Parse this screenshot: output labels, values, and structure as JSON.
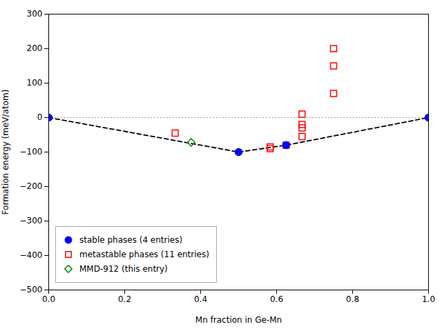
{
  "chart_data": {
    "type": "scatter",
    "xlabel": "Mn fraction in Ge-Mn",
    "ylabel": "Formation energy (meV/atom)",
    "xlim": [
      0.0,
      1.0
    ],
    "ylim": [
      -500,
      300
    ],
    "xticks": [
      {
        "value": 0.0,
        "label": "0.0"
      },
      0.2,
      0.4,
      0.6,
      0.8,
      {
        "value": 1.0,
        "label": "1.0"
      }
    ],
    "yticks": [
      -500,
      -400,
      -300,
      -200,
      -100,
      0,
      100,
      200,
      300
    ],
    "grid": false,
    "legend": "lower left",
    "series": [
      {
        "name": "stable phases (4 entries)",
        "color": "blue",
        "marker": "circle",
        "x": [
          0.0,
          0.5,
          0.625,
          1.0
        ],
        "values": [
          0.0,
          -100,
          -80,
          0.0
        ]
      },
      {
        "name": "metastable phases (11 entries)",
        "color": "red",
        "marker": "open_square",
        "x": [
          0.333,
          0.583,
          0.625,
          0.667,
          0.667,
          0.667,
          0.75,
          0.75,
          0.75,
          0.667,
          0.583
        ],
        "values": [
          -45,
          -85,
          -80,
          10,
          -20,
          -30,
          150,
          200,
          70,
          -55,
          -90
        ]
      },
      {
        "name": "MMD-912 (this entry)",
        "color": "green",
        "marker": "open_diamond",
        "x": [
          0.375
        ],
        "values": [
          -72
        ]
      },
      {
        "type": "line",
        "color": "black",
        "line_style": "dashed",
        "x": [
          0.0,
          0.5,
          0.625,
          1.0
        ],
        "values": [
          0.0,
          -100,
          -80,
          0.0
        ]
      },
      {
        "type": "rule",
        "color": "gray",
        "line_style": "dotted",
        "values": [
          0
        ]
      }
    ]
  }
}
